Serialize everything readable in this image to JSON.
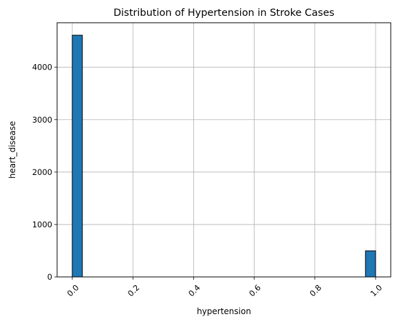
{
  "chart_data": {
    "type": "bar",
    "title": "Distribution of Hypertension in Stroke Cases",
    "xlabel": "hypertension",
    "ylabel": "heart_disease",
    "xlim": [
      -0.05,
      1.05
    ],
    "ylim": [
      0,
      4850
    ],
    "xticks": [
      0.0,
      0.2,
      0.4,
      0.6,
      0.8,
      1.0
    ],
    "xtick_labels": [
      "0.0",
      "0.2",
      "0.4",
      "0.6",
      "0.8",
      "1.0"
    ],
    "xtick_rotation": 45,
    "yticks": [
      0,
      1000,
      2000,
      3000,
      4000
    ],
    "ytick_labels": [
      "0",
      "1000",
      "2000",
      "3000",
      "4000"
    ],
    "grid": true,
    "bins": [
      {
        "start": 0.0,
        "end": 0.0333,
        "value": 4612
      },
      {
        "start": 0.9667,
        "end": 1.0,
        "value": 498
      }
    ],
    "colors": {
      "bar_fill": "#1f77b4",
      "bar_edge": "#000000",
      "grid": "#b0b0b0"
    }
  }
}
